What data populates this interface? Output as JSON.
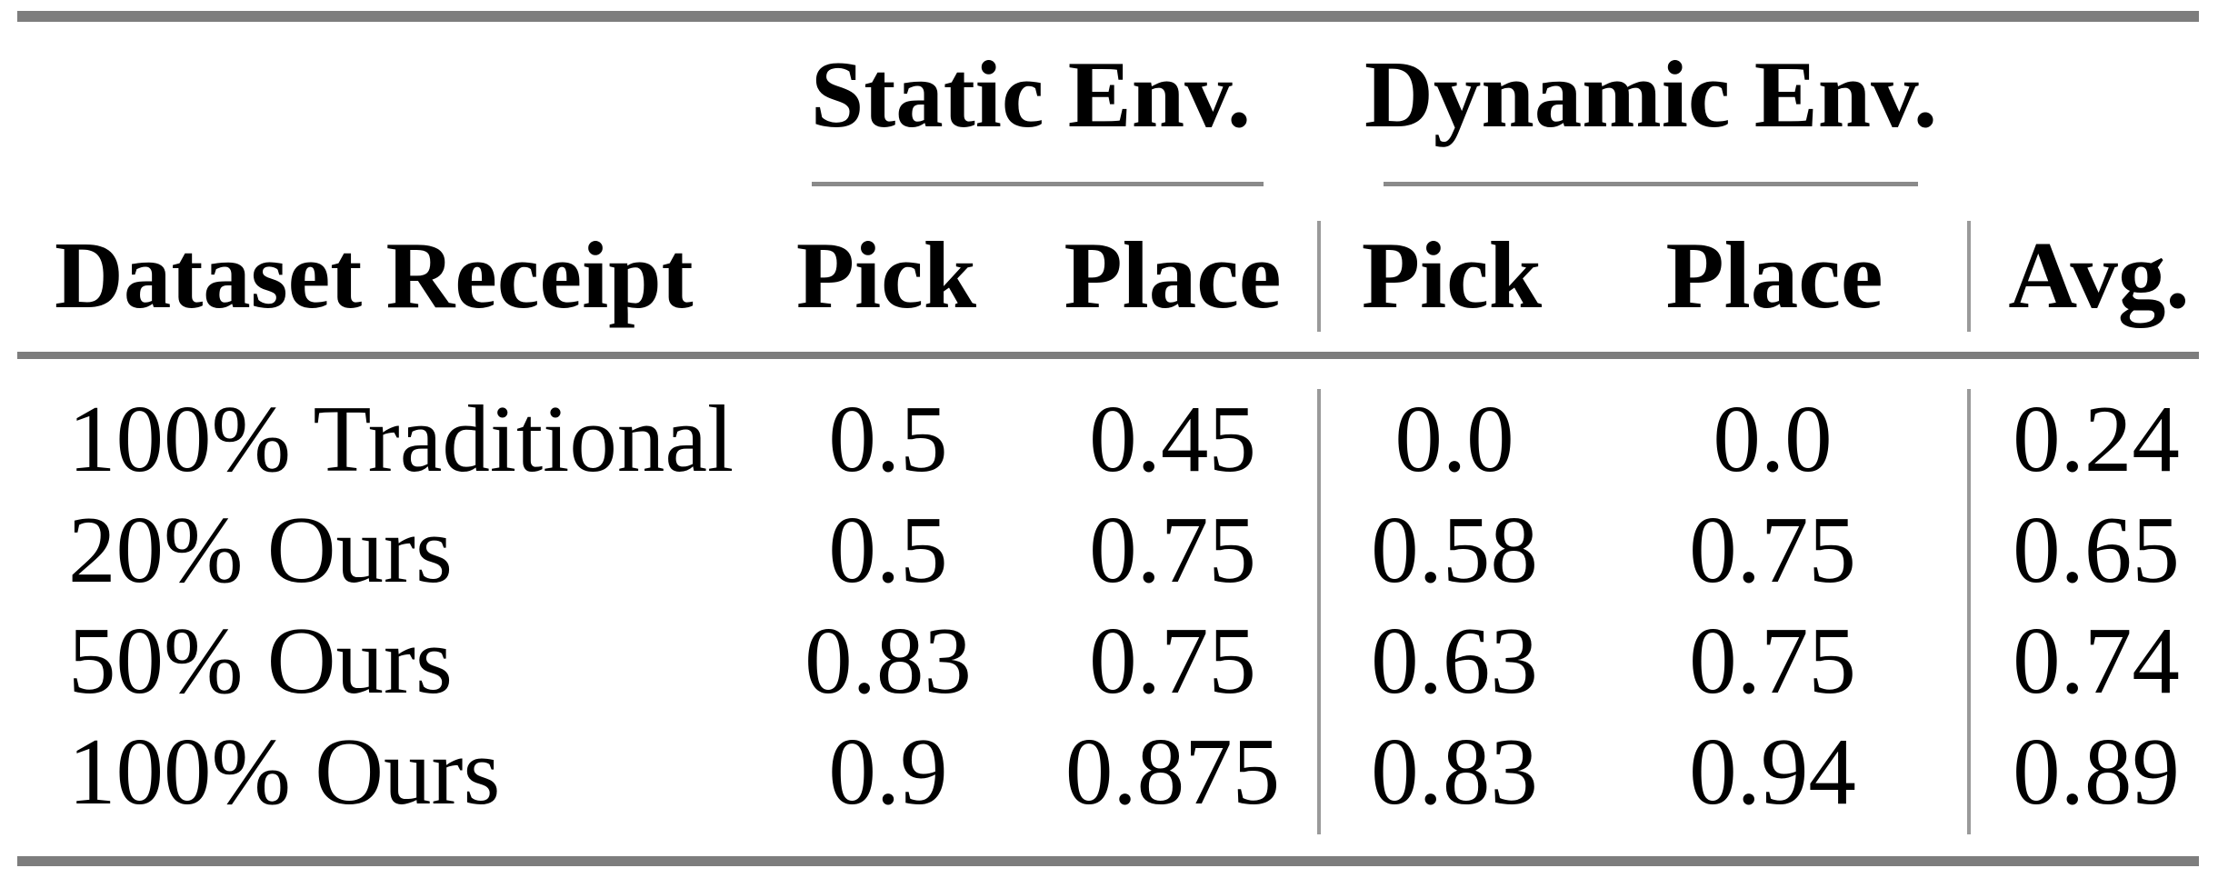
{
  "colors": {
    "background": "#ffffff",
    "text": "#000000",
    "thick_rule": "#7d7d7d",
    "cmid_rule": "#8a8a8a",
    "vertical_rule": "#9a9a9a"
  },
  "table": {
    "spanners": [
      {
        "label": "Static Env."
      },
      {
        "label": "Dynamic Env."
      }
    ],
    "headers": {
      "row_label": "Dataset Receipt",
      "static_pick": "Pick",
      "static_place": "Place",
      "dynamic_pick": "Pick",
      "dynamic_place": "Place",
      "avg": "Avg."
    },
    "rows": [
      {
        "label": "100% Traditional",
        "static_pick": "0.5",
        "static_place": "0.45",
        "dynamic_pick": "0.0",
        "dynamic_place": "0.0",
        "avg": "0.24"
      },
      {
        "label": "20% Ours",
        "static_pick": "0.5",
        "static_place": "0.75",
        "dynamic_pick": "0.58",
        "dynamic_place": "0.75",
        "avg": "0.65"
      },
      {
        "label": "50% Ours",
        "static_pick": "0.83",
        "static_place": "0.75",
        "dynamic_pick": "0.63",
        "dynamic_place": "0.75",
        "avg": "0.74"
      },
      {
        "label": "100% Ours",
        "static_pick": "0.9",
        "static_place": "0.875",
        "dynamic_pick": "0.83",
        "dynamic_place": "0.94",
        "avg": "0.89"
      }
    ]
  }
}
